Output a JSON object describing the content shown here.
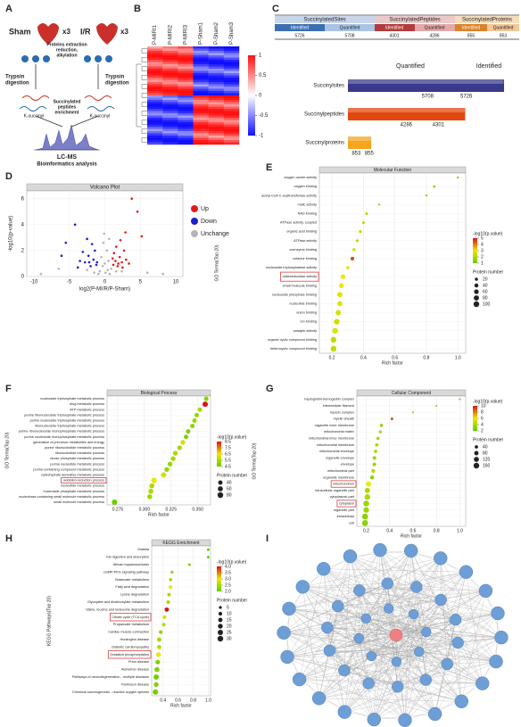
{
  "panels": [
    "A",
    "B",
    "C",
    "D",
    "E",
    "F",
    "G",
    "H",
    "I"
  ],
  "schematic": {
    "sham": "Sham",
    "sham_reps": "x3",
    "ir": "I/R",
    "ir_reps": "x3",
    "extraction": [
      "Proteins extraction",
      "reduction,",
      "alkylation"
    ],
    "trypsin_left": [
      "Trypsin",
      "digestion"
    ],
    "trypsin_right": [
      "Trypsin",
      "digestion"
    ],
    "ksuccinyl_left": "K-succinyl",
    "ksuccinyl_right": "K-succinyl",
    "enrichment": [
      "Succinylated",
      "peptides",
      "enrichment"
    ],
    "lcms": "LC-MS",
    "bioinfo": "Bioinformatics analysis"
  },
  "heatmap": {
    "columns": [
      "P-MIRI1",
      "P-MIRI2",
      "P-MIRI3",
      "P-Sham1",
      "P-Sham2",
      "P-Sham3"
    ],
    "colorbar_ticks": [
      1,
      0.5,
      0,
      -0.5,
      -1
    ],
    "colorbar_lim": [
      -1,
      1
    ]
  },
  "table": {
    "groups": [
      "SuccinylatedSites",
      "SuccinylatedPeptides",
      "SuccinylatedProteins"
    ],
    "subheaders": [
      "Identified",
      "Quantified",
      "Identified",
      "Quantified",
      "Identified",
      "Quantified"
    ],
    "values": [
      5726,
      5708,
      4301,
      4286,
      855,
      853
    ]
  },
  "chart_data": [
    {
      "type": "bar",
      "categories": [
        "Succinylsites",
        "Succinylpeptides",
        "Succinylproteins"
      ],
      "colors": [
        "#3a3a8c",
        "#e2470f",
        "#f5a51f"
      ],
      "series": [
        {
          "name": "Quantified",
          "values": [
            5708,
            4286,
            853
          ]
        },
        {
          "name": "Identified",
          "values": [
            5726,
            4301,
            855
          ]
        }
      ]
    },
    {
      "type": "scatter",
      "title": "Volcano Plot",
      "xlabel": "log2(P-MI/R/P-Sham)",
      "ylabel": "-log10(p-value)",
      "xlim": [
        -11,
        11
      ],
      "xticks": [
        -10,
        -5,
        0,
        5,
        10
      ],
      "ylim": [
        0,
        6.6
      ],
      "yticks": [
        0,
        2,
        4,
        6
      ],
      "series": [
        {
          "name": "Up",
          "color": "#e41a1c",
          "x": [
            1.2,
            1.5,
            1.8,
            2.1,
            2.4,
            1.3,
            2.7,
            3.0,
            1.6,
            2.2,
            3.4,
            3.8,
            4.6,
            5.2,
            1.9,
            2.5,
            1.1,
            2.9
          ],
          "values": [
            0.9,
            1.2,
            0.8,
            1.5,
            1.1,
            1.8,
            2.0,
            1.3,
            2.3,
            2.8,
            1.0,
            6.0,
            5.0,
            3.1,
            1.0,
            0.7,
            1.4,
            3.4
          ]
        },
        {
          "name": "Down",
          "color": "#1f1fd0",
          "x": [
            -1.2,
            -1.6,
            -2.0,
            -2.3,
            -2.8,
            -1.4,
            -3.1,
            -3.5,
            -1.8,
            -2.5,
            -4.2,
            -5.5,
            -1.1,
            -2.2,
            -3.8,
            -6.1
          ],
          "values": [
            0.9,
            1.3,
            0.8,
            1.6,
            1.1,
            2.0,
            1.9,
            1.2,
            2.5,
            2.9,
            4.0,
            2.6,
            1.1,
            1.1,
            0.7,
            1.6
          ]
        },
        {
          "name": "Unchange",
          "color": "#b5b5b5",
          "x": [
            0.1,
            -0.3,
            0.5,
            -0.7,
            0.9,
            -0.5,
            0.3,
            -0.2,
            0.7,
            -0.9,
            0.4,
            -1.5,
            1.6,
            -2.5,
            2.4,
            0.0,
            -0.1,
            0.6,
            -9.0,
            -6.5,
            6.0,
            8.2
          ],
          "values": [
            0.3,
            0.8,
            1.2,
            0.4,
            0.6,
            1.5,
            2.0,
            2.6,
            0.2,
            0.2,
            0.5,
            0.3,
            0.4,
            0.5,
            0.4,
            1.0,
            3.3,
            2.9,
            0.2,
            0.6,
            0.3,
            0.2
          ]
        }
      ]
    },
    {
      "type": "dot",
      "title": "Molecular Function",
      "xlabel": "Rich factor",
      "ylabel": "GO Terms(Top 20)",
      "categories": [
        "oxygen carrier activity",
        "oxygen binding",
        "acetyl-CoA C-acyltransferase activity",
        "malic activity",
        "NAD binding",
        "ATPase activity, coupled",
        "organic acid binding",
        "ATPase activity",
        "coenzyme binding",
        "cofactor binding",
        "nucleoside-triphosphatase activity",
        "oxidoreductase activity",
        "small molecule binding",
        "nucleoside phosphate binding",
        "nucleotide binding",
        "anion binding",
        "ion binding",
        "catalytic activity",
        "organic cyclic compound binding",
        "heterocyclic compound binding"
      ],
      "values": [
        1.0,
        0.85,
        0.8,
        0.5,
        0.42,
        0.4,
        0.38,
        0.36,
        0.34,
        0.33,
        0.3,
        0.27,
        0.26,
        0.25,
        0.25,
        0.24,
        0.23,
        0.22,
        0.21,
        0.21
      ],
      "pvalues": [
        1.3,
        1.4,
        1.5,
        1.8,
        2.0,
        1.9,
        2.2,
        2.0,
        2.5,
        4.5,
        2.6,
        3.0,
        3.0,
        2.8,
        2.8,
        2.6,
        2.5,
        2.7,
        2.3,
        2.3
      ],
      "counts": [
        5,
        8,
        6,
        5,
        12,
        10,
        15,
        12,
        20,
        30,
        18,
        60,
        70,
        80,
        80,
        85,
        95,
        100,
        100,
        100
      ],
      "xlim": [
        0.12,
        1.05
      ],
      "xticks": [
        0.2,
        0.4,
        0.6,
        0.8,
        {
          "value": 1,
          "label": "1.0"
        }
      ],
      "color_legend_title": "-log10(p.value)",
      "color_ticks": [
        5,
        4,
        3,
        2,
        1
      ],
      "size_legend_title": "Protein number",
      "size_ticks": [
        20,
        40,
        60,
        80,
        100
      ],
      "highlight_indices": [
        11
      ]
    },
    {
      "type": "dot",
      "title": "Biological Process",
      "xlabel": "Rich factor",
      "ylabel": "GO Terms(Top 20)",
      "categories": [
        "nucleoside triphosphate metabolic process",
        "drug metabolic process",
        "ATP metabolic process",
        "purine ribonucleoside triphosphate metabolic process",
        "purine nucleoside triphosphate metabolic process",
        "ribonucleoside triphosphate metabolic process",
        "purine ribonucleoside monophosphate metabolic process",
        "purine nucleoside monophosphate metabolic process",
        "generation of precursor metabolites and energy",
        "purine ribonucleotide metabolic process",
        "ribonucleotide metabolic process",
        "ribose phosphate metabolic process",
        "purine nucleotide metabolic process",
        "purine-containing compound metabolic process",
        "carbohydrate derivative metabolic process",
        "oxidation-reduction process",
        "nucleotide metabolic process",
        "nucleoside phosphate metabolic process",
        "nucleobase-containing small molecule metabolic process",
        "small molecule metabolic process"
      ],
      "values": [
        0.358,
        0.357,
        0.352,
        0.349,
        0.347,
        0.345,
        0.341,
        0.339,
        0.336,
        0.333,
        0.329,
        0.327,
        0.324,
        0.321,
        0.318,
        0.309,
        0.307,
        0.306,
        0.305,
        0.272
      ],
      "pvalues": [
        5.0,
        8.5,
        5.5,
        5.2,
        5.2,
        5.0,
        4.8,
        4.8,
        6.0,
        5.5,
        5.5,
        5.5,
        5.3,
        5.3,
        6.0,
        6.5,
        5.5,
        5.5,
        5.3,
        4.6
      ],
      "counts": [
        45,
        70,
        45,
        42,
        42,
        42,
        40,
        40,
        50,
        50,
        52,
        52,
        52,
        54,
        62,
        75,
        58,
        58,
        55,
        72
      ],
      "xlim": [
        0.265,
        0.362
      ],
      "xticks": [
        0.275,
        {
          "value": 0.3,
          "label": "0.300"
        },
        0.325,
        {
          "value": 0.35,
          "label": "0.350"
        }
      ],
      "color_legend_title": "-log10(p.value)",
      "color_ticks": [
        8.5,
        7.5,
        6.5,
        5.5,
        4.5
      ],
      "size_legend_title": "Protein number",
      "size_ticks": [
        40,
        60,
        80
      ],
      "highlight_indices": [
        15
      ]
    },
    {
      "type": "dot",
      "title": "Cellular Component",
      "xlabel": "Rich factor",
      "ylabel": "GO Terms(Top 20)",
      "categories": [
        "haptoglobin-hemoglobin complex",
        "intermediate filament",
        "myosin complex",
        "myelin sheath",
        "organelle inner membrane",
        "mitochondrial matrix",
        "mitochondrial inner membrane",
        "mitochondrial membrane",
        "mitochondrial envelope",
        "organelle envelope",
        "envelope",
        "mitochondrial part",
        "organelle membrane",
        "mitochondrion",
        "intracellular organelle part",
        "cytoplasmic part",
        "cytoplasm",
        "organelle part",
        "intracellular",
        "cell"
      ],
      "values": [
        1.0,
        0.8,
        0.6,
        0.42,
        0.33,
        0.32,
        0.3,
        0.29,
        0.28,
        0.27,
        0.27,
        0.26,
        0.25,
        0.22,
        0.21,
        0.21,
        0.2,
        0.2,
        0.19,
        0.19
      ],
      "pvalues": [
        1.2,
        1.5,
        1.3,
        9.5,
        3.0,
        3.5,
        4.0,
        4.0,
        4.0,
        3.5,
        3.5,
        4.5,
        3.0,
        6.0,
        4.0,
        4.0,
        3.5,
        3.5,
        3.0,
        3.0
      ],
      "counts": [
        4,
        3,
        3,
        15,
        30,
        25,
        35,
        40,
        40,
        45,
        45,
        60,
        60,
        120,
        130,
        150,
        170,
        150,
        180,
        180
      ],
      "xlim": [
        0.12,
        1.05
      ],
      "xticks": [
        0.2,
        0.4,
        0.6,
        0.8,
        {
          "value": 1,
          "label": "1.0"
        }
      ],
      "color_legend_title": "-log10(p.value)",
      "color_ticks": [
        10,
        8,
        6,
        4,
        2
      ],
      "size_legend_title": "Protein number",
      "size_ticks": [
        40,
        80,
        120,
        160
      ],
      "highlight_indices": [
        13,
        16
      ]
    },
    {
      "type": "dot",
      "title": "KEGG Enrichment",
      "xlabel": "Rich factor",
      "ylabel": "KEGG Pathways(Top 20)",
      "categories": [
        "Malaria",
        "Fat digestion and absorption",
        "African trypanosomiasis",
        "cGMP-PKG signaling pathway",
        "Butanoate metabolism",
        "Fatty acid degradation",
        "Lysine degradation",
        "Glyoxylate and dicarboxylate metabolism",
        "Valine, leucine and isoleucine degradation",
        "Citrate cycle (TCA cycle)",
        "Propanoate metabolism",
        "Cardiac muscle contraction",
        "Huntington disease",
        "Diabetic cardiomyopathy",
        "Oxidative phosphorylation",
        "Prion disease",
        "Alzheimer disease",
        "Pathways of neurodegeneration - multiple diseases",
        "Parkinson disease",
        "Chemical carcinogenesis - reactive oxygen species"
      ],
      "values": [
        1.0,
        1.0,
        0.75,
        0.52,
        0.5,
        0.5,
        0.48,
        0.47,
        0.45,
        0.42,
        0.41,
        0.37,
        0.35,
        0.35,
        0.34,
        0.33,
        0.32,
        0.31,
        0.31,
        0.3
      ],
      "pvalues": [
        2.0,
        2.0,
        2.2,
        2.3,
        2.4,
        3.0,
        2.5,
        2.5,
        4.0,
        2.8,
        2.5,
        2.3,
        2.5,
        2.6,
        3.0,
        2.2,
        2.2,
        2.1,
        2.2,
        2.1
      ],
      "counts": [
        3,
        3,
        4,
        5,
        6,
        10,
        8,
        9,
        15,
        10,
        8,
        10,
        15,
        14,
        20,
        18,
        22,
        25,
        18,
        28
      ],
      "xlim": [
        0.25,
        1.03
      ],
      "xticks": [
        0.4,
        0.6,
        0.8,
        {
          "value": 1,
          "label": "1.0"
        }
      ],
      "color_legend_title": "-log10(p.value)",
      "color_ticks": [
        {
          "value": 4,
          "label": "4.0"
        },
        3.5,
        {
          "value": 3,
          "label": "3.0"
        },
        2.5,
        {
          "value": 2,
          "label": "2.0"
        }
      ],
      "size_legend_title": "Protein number",
      "size_ticks": [
        5,
        10,
        15,
        20,
        25,
        30
      ],
      "highlight_indices": [
        9,
        14
      ]
    }
  ]
}
